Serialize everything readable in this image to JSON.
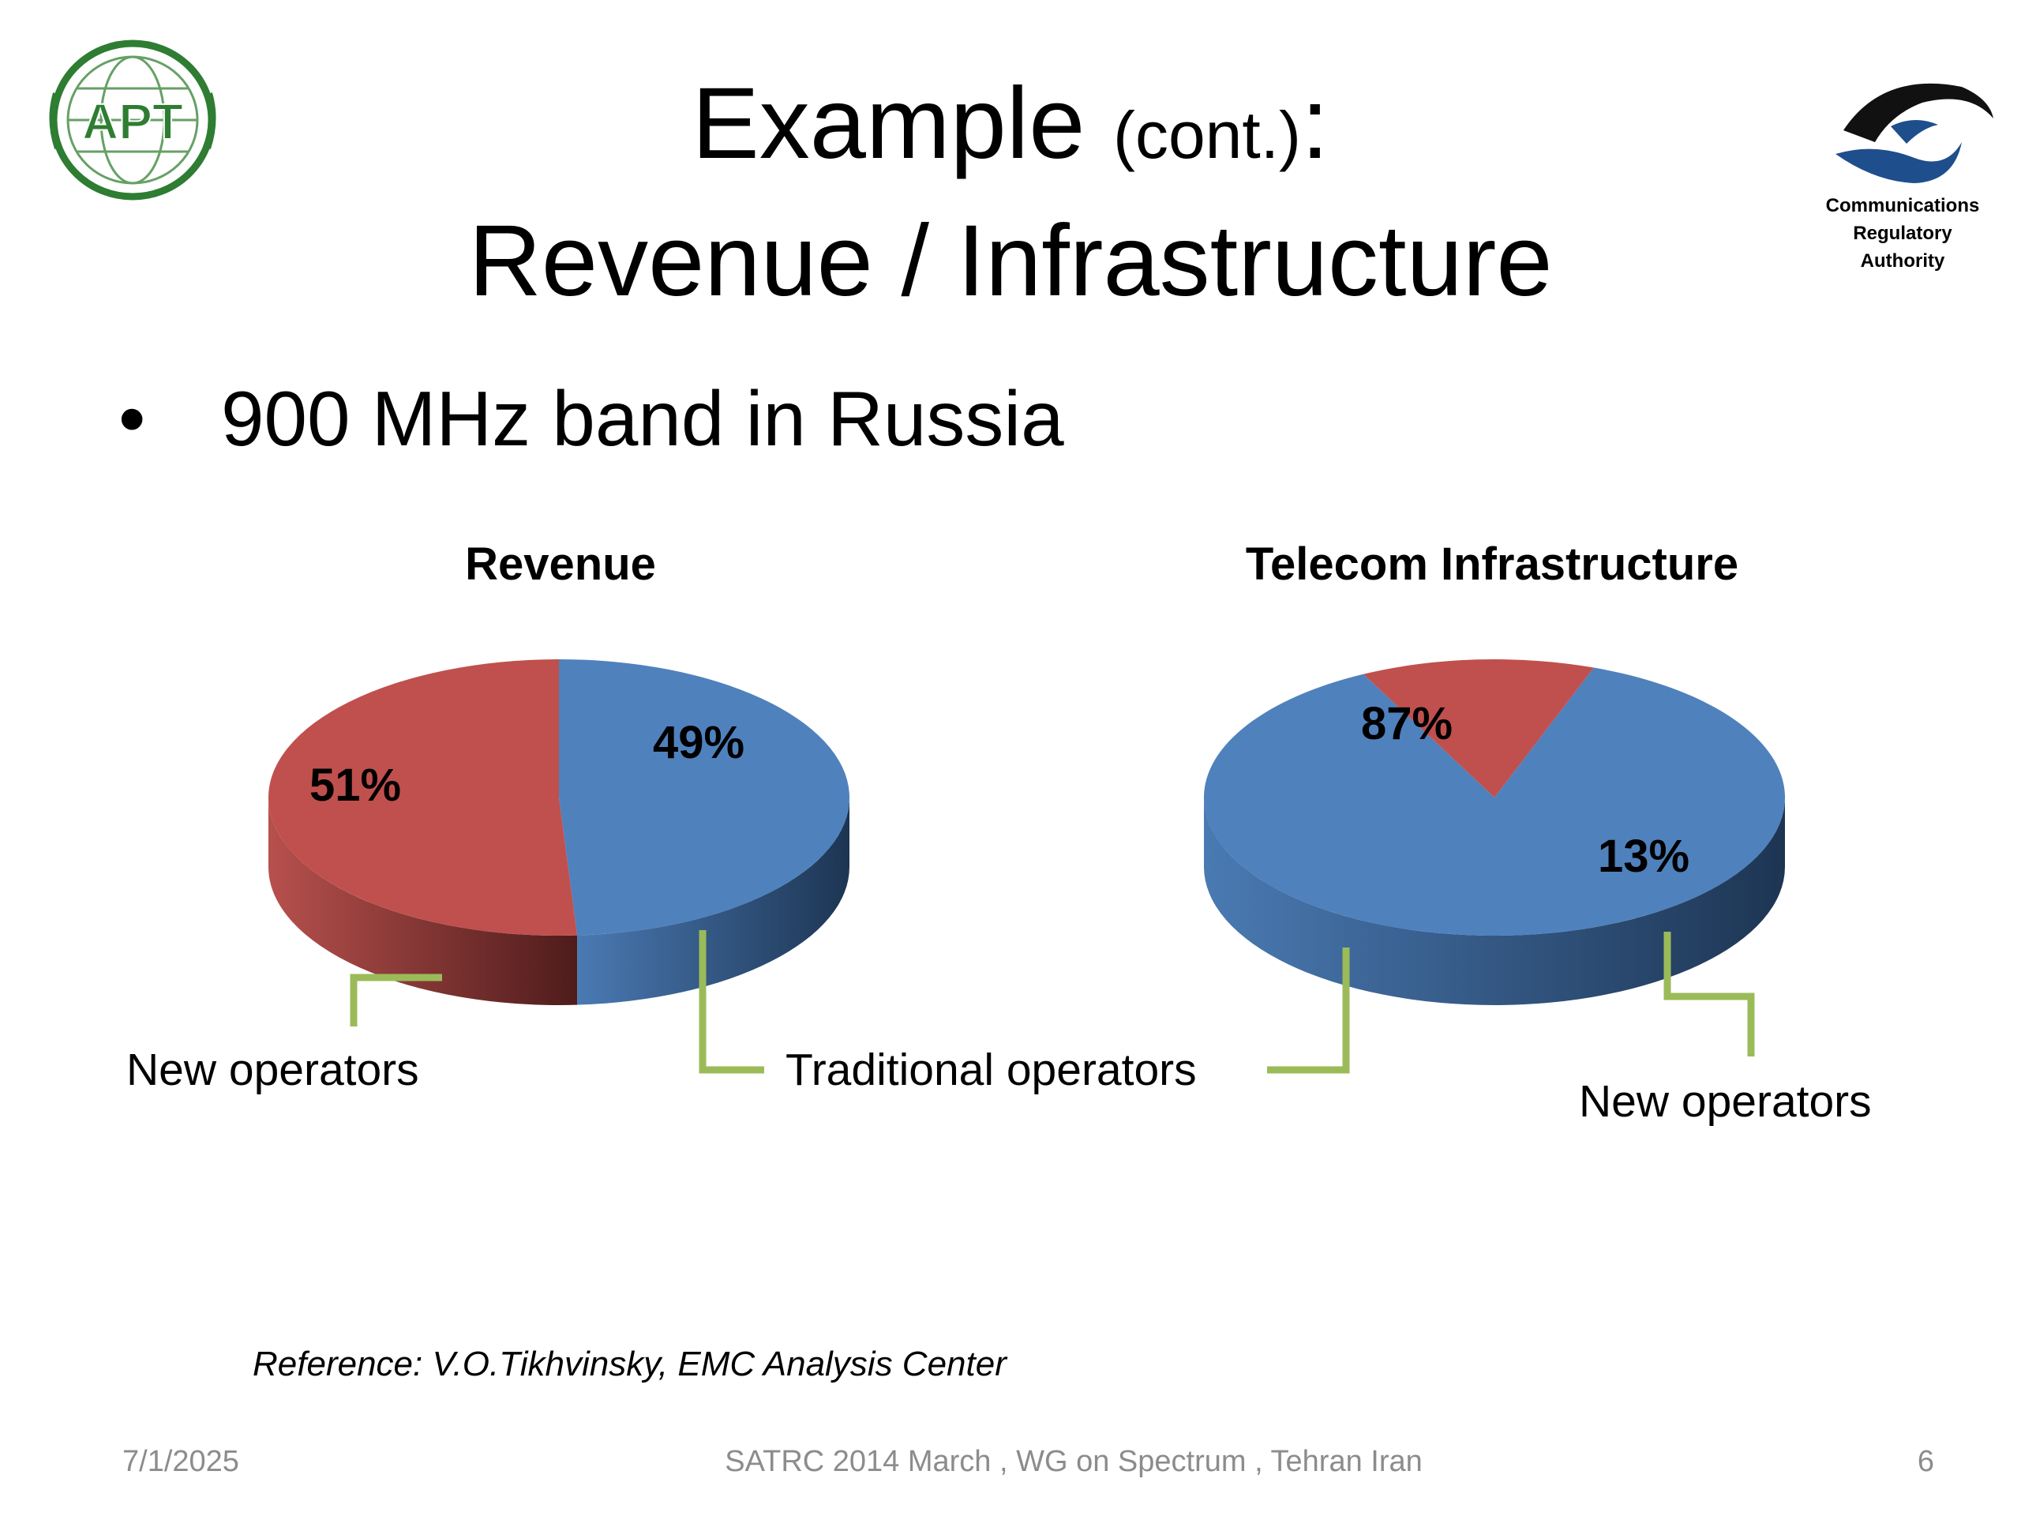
{
  "slide": {
    "title_main": "Example",
    "title_paren": "(cont.)",
    "title_colon": ":",
    "title_line2": "Revenue / Infrastructure",
    "bullet_marker": "•",
    "bullet_text": "900 MHz band in Russia",
    "reference": "Reference: V.O.Tikhvinsky, EMC Analysis Center"
  },
  "logos": {
    "left_logo_text": "APT",
    "right_logo_lines": [
      "Communications",
      "Regulatory",
      "Authority"
    ]
  },
  "footer": {
    "date": "7/1/2025",
    "center": "SATRC 2014 March , WG on Spectrum , Tehran Iran",
    "page": "6"
  },
  "colors": {
    "blue": "#4f81bd",
    "red": "#c0504d",
    "leader": "#9bbb59"
  },
  "chart_data": [
    {
      "type": "pie",
      "title": "Revenue",
      "slices": [
        {
          "label": "Traditional operators",
          "value": 49,
          "data_label": "49%",
          "color": "#4f81bd"
        },
        {
          "label": "New operators",
          "value": 51,
          "data_label": "51%",
          "color": "#c0504d"
        }
      ]
    },
    {
      "type": "pie",
      "title": "Telecom Infrastructure",
      "slices": [
        {
          "label": "Traditional operators",
          "value": 87,
          "data_label": "87%",
          "color": "#4f81bd"
        },
        {
          "label": "New operators",
          "value": 13,
          "data_label": "13%",
          "color": "#c0504d"
        }
      ]
    }
  ]
}
